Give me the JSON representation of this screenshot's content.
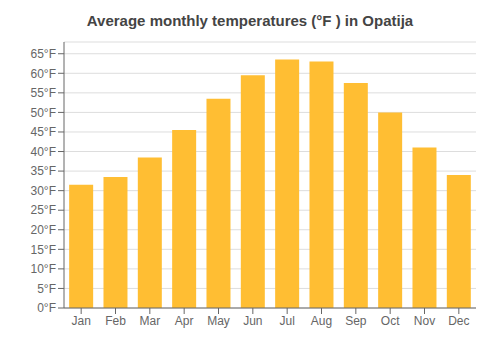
{
  "chart_data": {
    "type": "bar",
    "title": "Average monthly temperatures (°F ) in Opatija",
    "categories": [
      "Jan",
      "Feb",
      "Mar",
      "Apr",
      "May",
      "Jun",
      "Jul",
      "Aug",
      "Sep",
      "Oct",
      "Nov",
      "Dec"
    ],
    "values": [
      31.5,
      33.5,
      38.5,
      45.5,
      53.5,
      59.5,
      63.5,
      63.0,
      57.5,
      50.0,
      41.0,
      34.0
    ],
    "color": "#FFBE33",
    "ylim": [
      0,
      68
    ],
    "yticks": [
      {
        "value": 0,
        "label": "0°F"
      },
      {
        "value": 5,
        "label": "5°F"
      },
      {
        "value": 10,
        "label": "10°F"
      },
      {
        "value": 15,
        "label": "15°F"
      },
      {
        "value": 20,
        "label": "20°F"
      },
      {
        "value": 25,
        "label": "25°F"
      },
      {
        "value": 30,
        "label": "30°F"
      },
      {
        "value": 35,
        "label": "35°F"
      },
      {
        "value": 40,
        "label": "40°F"
      },
      {
        "value": 45,
        "label": "45°F"
      },
      {
        "value": 50,
        "label": "50°F"
      },
      {
        "value": 55,
        "label": "55°F"
      },
      {
        "value": 60,
        "label": "60°F"
      },
      {
        "value": 65,
        "label": "65°F"
      }
    ],
    "grid": true
  }
}
